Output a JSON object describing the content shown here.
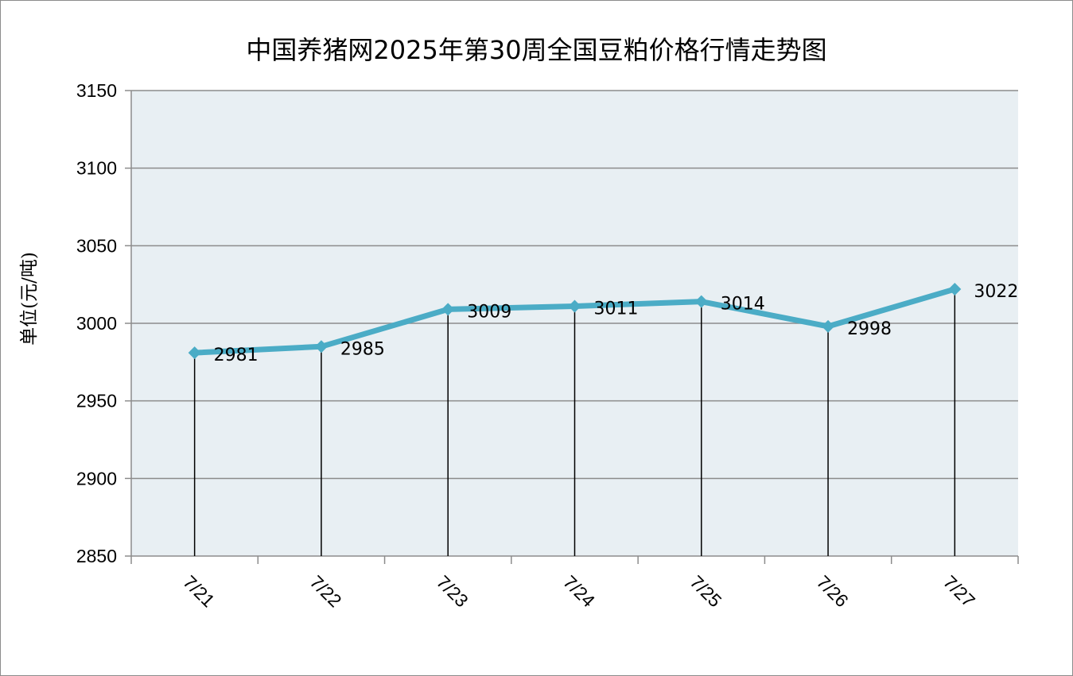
{
  "chart_data": {
    "type": "line",
    "title": "中国养猪网2025年第30周全国豆粕价格行情走势图",
    "ylabel": "单位(元/吨)",
    "xlabel": "",
    "categories": [
      "7/21",
      "7/22",
      "7/23",
      "7/24",
      "7/25",
      "7/26",
      "7/27"
    ],
    "series": [
      {
        "values": [
          2981,
          2985,
          3009,
          3011,
          3014,
          2998,
          3022
        ]
      }
    ],
    "ylim": [
      2850,
      3150
    ],
    "yticks": [
      2850,
      2900,
      2950,
      3000,
      3050,
      3100,
      3150
    ],
    "grid": true,
    "legend": "none",
    "data_labels": true,
    "drop_lines": true,
    "colors": {
      "line": "#4bacc6",
      "plot_background": "#e8eff3",
      "gridline": "#8c8c8c",
      "drop_line": "#000000"
    }
  }
}
